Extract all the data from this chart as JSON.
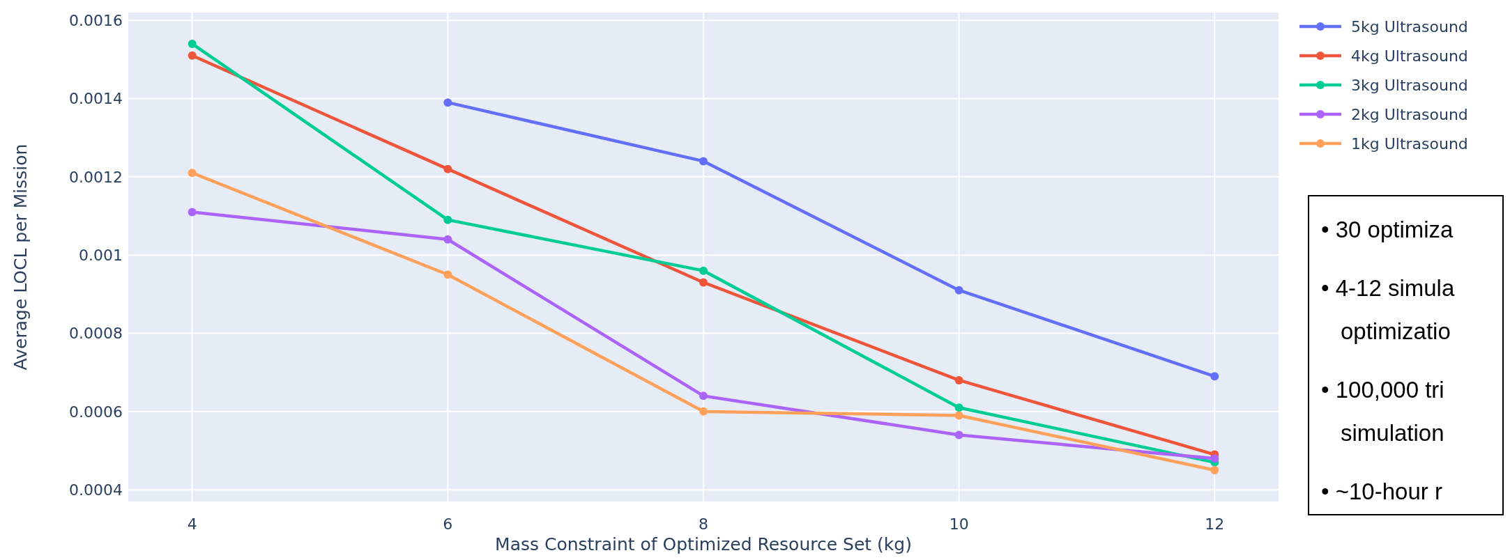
{
  "chart_data": {
    "type": "line",
    "xlabel": "Mass Constraint of Optimized Resource Set (kg)",
    "ylabel": "Average LOCL per Mission",
    "x": [
      4,
      6,
      8,
      10,
      12
    ],
    "series": [
      {
        "name": "5kg Ultrasound",
        "color": "#636efa",
        "values": [
          null,
          0.00139,
          0.00124,
          0.00091,
          0.00069
        ]
      },
      {
        "name": "4kg Ultrasound",
        "color": "#ef553b",
        "values": [
          0.00151,
          0.00122,
          0.00093,
          0.00068,
          0.00049
        ]
      },
      {
        "name": "3kg Ultrasound",
        "color": "#00cc96",
        "values": [
          0.00154,
          0.00109,
          0.00096,
          0.00061,
          0.00047
        ]
      },
      {
        "name": "2kg Ultrasound",
        "color": "#ab63fa",
        "values": [
          0.00111,
          0.00104,
          0.00064,
          0.00054,
          0.00048
        ]
      },
      {
        "name": "1kg Ultrasound",
        "color": "#ffa15a",
        "values": [
          0.00121,
          0.00095,
          0.0006,
          0.00059,
          0.00045
        ]
      }
    ],
    "xlim": [
      3.5,
      12.5
    ],
    "xticks": [
      4,
      6,
      8,
      10,
      12
    ],
    "ylim": [
      0.00037,
      0.00162
    ],
    "yticks": [
      0.0004,
      0.0006,
      0.0008,
      0.001,
      0.0012,
      0.0014,
      0.0016
    ],
    "grid": true,
    "legend": "top right",
    "marker": "circle",
    "line_style": "solid",
    "annotations": [
      "• 30 optimiza",
      "• 4-12 simula\noptimizatio",
      "• 100,000 tri\nsimulation",
      "• ~10-hour r"
    ]
  }
}
